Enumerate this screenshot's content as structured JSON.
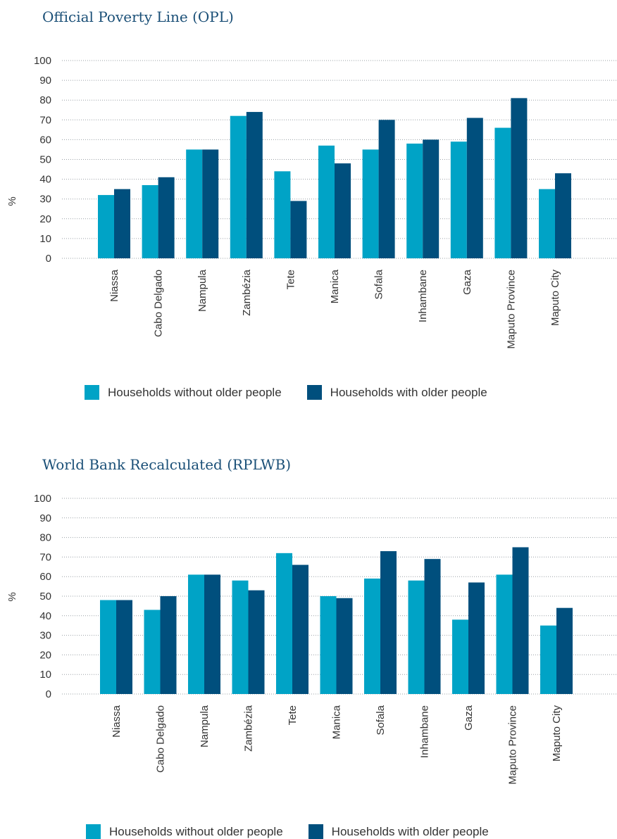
{
  "colors": {
    "without": "#00a3c6",
    "with": "#004f7d",
    "grid": "#9aa0a6"
  },
  "legend": {
    "without": "Households without older people",
    "with": "Households with older people"
  },
  "chart_data": [
    {
      "type": "bar",
      "title": "Official Poverty Line (OPL)",
      "ylabel": "%",
      "ylim": [
        0,
        100
      ],
      "yticks": [
        "0",
        "10",
        "20",
        "30",
        "40",
        "50",
        "60",
        "70",
        "80",
        "90",
        "100"
      ],
      "grid": true,
      "legend_position": "bottom",
      "categories": [
        "Niassa",
        "Cabo Delgado",
        "Nampula",
        "Zambézia",
        "Tete",
        "Manica",
        "Sofala",
        "Inhambane",
        "Gaza",
        "Maputo Province",
        "Maputo City"
      ],
      "series": [
        {
          "name": "Households without older people",
          "values": [
            32,
            37,
            55,
            72,
            44,
            57,
            55,
            58,
            59,
            66,
            35
          ]
        },
        {
          "name": "Households with older people",
          "values": [
            35,
            41,
            55,
            74,
            29,
            48,
            70,
            60,
            71,
            81,
            43
          ]
        }
      ]
    },
    {
      "type": "bar",
      "title": "World Bank Recalculated (RPLWB)",
      "ylabel": "%",
      "ylim": [
        0,
        100
      ],
      "yticks": [
        "0",
        "10",
        "20",
        "30",
        "40",
        "50",
        "60",
        "70",
        "80",
        "90",
        "100"
      ],
      "grid": true,
      "legend_position": "bottom",
      "categories": [
        "Niassa",
        "Cabo Delgado",
        "Nampula",
        "Zambézia",
        "Tete",
        "Manica",
        "Sofala",
        "Inhambane",
        "Gaza",
        "Maputo Province",
        "Maputo City"
      ],
      "series": [
        {
          "name": "Households without older people",
          "values": [
            48,
            43,
            61,
            58,
            72,
            50,
            59,
            58,
            38,
            61,
            35
          ]
        },
        {
          "name": "Households with older people",
          "values": [
            48,
            50,
            61,
            53,
            66,
            49,
            73,
            69,
            57,
            75,
            44
          ]
        }
      ]
    }
  ]
}
